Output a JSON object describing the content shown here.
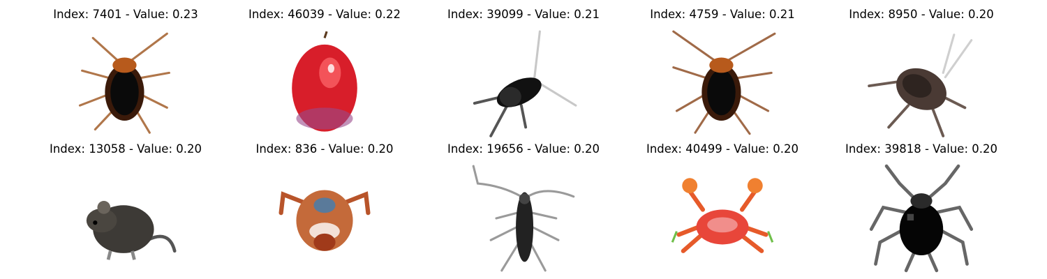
{
  "items": [
    {
      "caption": "Index: 7401 - Value: 0.23",
      "subject": "cockroach-icon"
    },
    {
      "caption": "Index: 46039 - Value: 0.22",
      "subject": "apple-icon"
    },
    {
      "caption": "Index: 39099 - Value: 0.21",
      "subject": "cricket-icon"
    },
    {
      "caption": "Index: 4759 - Value: 0.21",
      "subject": "cockroach-icon"
    },
    {
      "caption": "Index: 8950 - Value: 0.20",
      "subject": "cockroach-icon"
    },
    {
      "caption": "Index: 13058 - Value: 0.20",
      "subject": "mouse-icon"
    },
    {
      "caption": "Index: 836 - Value: 0.20",
      "subject": "crab-icon"
    },
    {
      "caption": "Index: 19656 - Value: 0.20",
      "subject": "beetle-icon"
    },
    {
      "caption": "Index: 40499 - Value: 0.20",
      "subject": "crab-icon"
    },
    {
      "caption": "Index: 39818 - Value: 0.20",
      "subject": "spider-icon"
    }
  ]
}
